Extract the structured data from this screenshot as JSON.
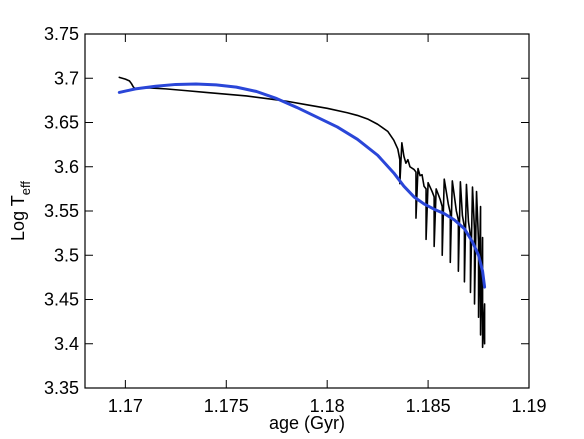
{
  "chart_data": {
    "type": "line",
    "xlabel": "age (Gyr)",
    "ylabel": {
      "main": "Log T",
      "sub": "eff"
    },
    "xlim": [
      1.168,
      1.19
    ],
    "ylim": [
      3.35,
      3.75
    ],
    "x_ticks": [
      1.17,
      1.175,
      1.18,
      1.185,
      1.19
    ],
    "x_tick_labels": [
      "1.17",
      "1.175",
      "1.18",
      "1.185",
      "1.19"
    ],
    "y_ticks": [
      3.35,
      3.4,
      3.45,
      3.5,
      3.55,
      3.6,
      3.65,
      3.7,
      3.75
    ],
    "y_tick_labels": [
      "3.35",
      "3.4",
      "3.45",
      "3.5",
      "3.55",
      "3.6",
      "3.65",
      "3.7",
      "3.75"
    ],
    "grid": false,
    "series": [
      {
        "color": "#000000",
        "points": [
          [
            1.1697,
            3.701
          ],
          [
            1.17,
            3.699
          ],
          [
            1.1702,
            3.697
          ],
          [
            1.1703,
            3.694
          ],
          [
            1.1704,
            3.69
          ],
          [
            1.1705,
            3.688
          ],
          [
            1.1708,
            3.689
          ],
          [
            1.1712,
            3.689
          ],
          [
            1.172,
            3.688
          ],
          [
            1.173,
            3.686
          ],
          [
            1.174,
            3.684
          ],
          [
            1.175,
            3.682
          ],
          [
            1.176,
            3.68
          ],
          [
            1.177,
            3.677
          ],
          [
            1.178,
            3.674
          ],
          [
            1.179,
            3.67
          ],
          [
            1.18,
            3.666
          ],
          [
            1.181,
            3.661
          ],
          [
            1.1815,
            3.658
          ],
          [
            1.182,
            3.654
          ],
          [
            1.1825,
            3.648
          ],
          [
            1.183,
            3.64
          ],
          [
            1.1833,
            3.63
          ],
          [
            1.1835,
            3.62
          ],
          [
            1.1836,
            3.608
          ],
          [
            1.1836,
            3.581
          ],
          [
            1.1837,
            3.627
          ],
          [
            1.1838,
            3.612
          ],
          [
            1.1839,
            3.604
          ],
          [
            1.184,
            3.608
          ],
          [
            1.1841,
            3.6
          ],
          [
            1.1843,
            3.597
          ],
          [
            1.1844,
            3.594
          ],
          [
            1.1844,
            3.542
          ],
          [
            1.1845,
            3.598
          ],
          [
            1.1846,
            3.59
          ],
          [
            1.1847,
            3.591
          ],
          [
            1.1848,
            3.578
          ],
          [
            1.1849,
            3.575
          ],
          [
            1.1849,
            3.518
          ],
          [
            1.185,
            3.582
          ],
          [
            1.1852,
            3.572
          ],
          [
            1.1853,
            3.566
          ],
          [
            1.1853,
            3.51
          ],
          [
            1.1854,
            3.575
          ],
          [
            1.1856,
            3.563
          ],
          [
            1.1857,
            3.555
          ],
          [
            1.1857,
            3.5
          ],
          [
            1.1858,
            3.586
          ],
          [
            1.186,
            3.558
          ],
          [
            1.1861,
            3.548
          ],
          [
            1.1861,
            3.492
          ],
          [
            1.1862,
            3.584
          ],
          [
            1.1864,
            3.55
          ],
          [
            1.1865,
            3.54
          ],
          [
            1.1865,
            3.482
          ],
          [
            1.1866,
            3.583
          ],
          [
            1.1867,
            3.545
          ],
          [
            1.1868,
            3.532
          ],
          [
            1.1868,
            3.47
          ],
          [
            1.1869,
            3.58
          ],
          [
            1.187,
            3.538
          ],
          [
            1.1871,
            3.522
          ],
          [
            1.1871,
            3.458
          ],
          [
            1.1872,
            3.577
          ],
          [
            1.1873,
            3.528
          ],
          [
            1.1873,
            3.508
          ],
          [
            1.1873,
            3.445
          ],
          [
            1.1874,
            3.572
          ],
          [
            1.1875,
            3.515
          ],
          [
            1.1875,
            3.495
          ],
          [
            1.1875,
            3.43
          ],
          [
            1.1876,
            3.555
          ],
          [
            1.1876,
            3.49
          ],
          [
            1.1876,
            3.47
          ],
          [
            1.1876,
            3.41
          ],
          [
            1.1877,
            3.52
          ],
          [
            1.1877,
            3.462
          ],
          [
            1.1877,
            3.396
          ],
          [
            1.1878,
            3.445
          ],
          [
            1.1878,
            3.4
          ]
        ]
      },
      {
        "color": "#2a46d8",
        "points": [
          [
            1.1697,
            3.684
          ],
          [
            1.1705,
            3.688
          ],
          [
            1.1715,
            3.691
          ],
          [
            1.1725,
            3.693
          ],
          [
            1.1735,
            3.6935
          ],
          [
            1.1745,
            3.6925
          ],
          [
            1.1755,
            3.69
          ],
          [
            1.1765,
            3.685
          ],
          [
            1.1775,
            3.677
          ],
          [
            1.1785,
            3.667
          ],
          [
            1.1795,
            3.656
          ],
          [
            1.1805,
            3.645
          ],
          [
            1.1815,
            3.631
          ],
          [
            1.1825,
            3.613
          ],
          [
            1.1833,
            3.593
          ],
          [
            1.1838,
            3.578
          ],
          [
            1.1843,
            3.566
          ],
          [
            1.1848,
            3.558
          ],
          [
            1.1853,
            3.552
          ],
          [
            1.1858,
            3.547
          ],
          [
            1.1863,
            3.54
          ],
          [
            1.1868,
            3.53
          ],
          [
            1.1872,
            3.515
          ],
          [
            1.1875,
            3.5
          ],
          [
            1.1877,
            3.482
          ],
          [
            1.1878,
            3.464
          ]
        ]
      }
    ]
  }
}
